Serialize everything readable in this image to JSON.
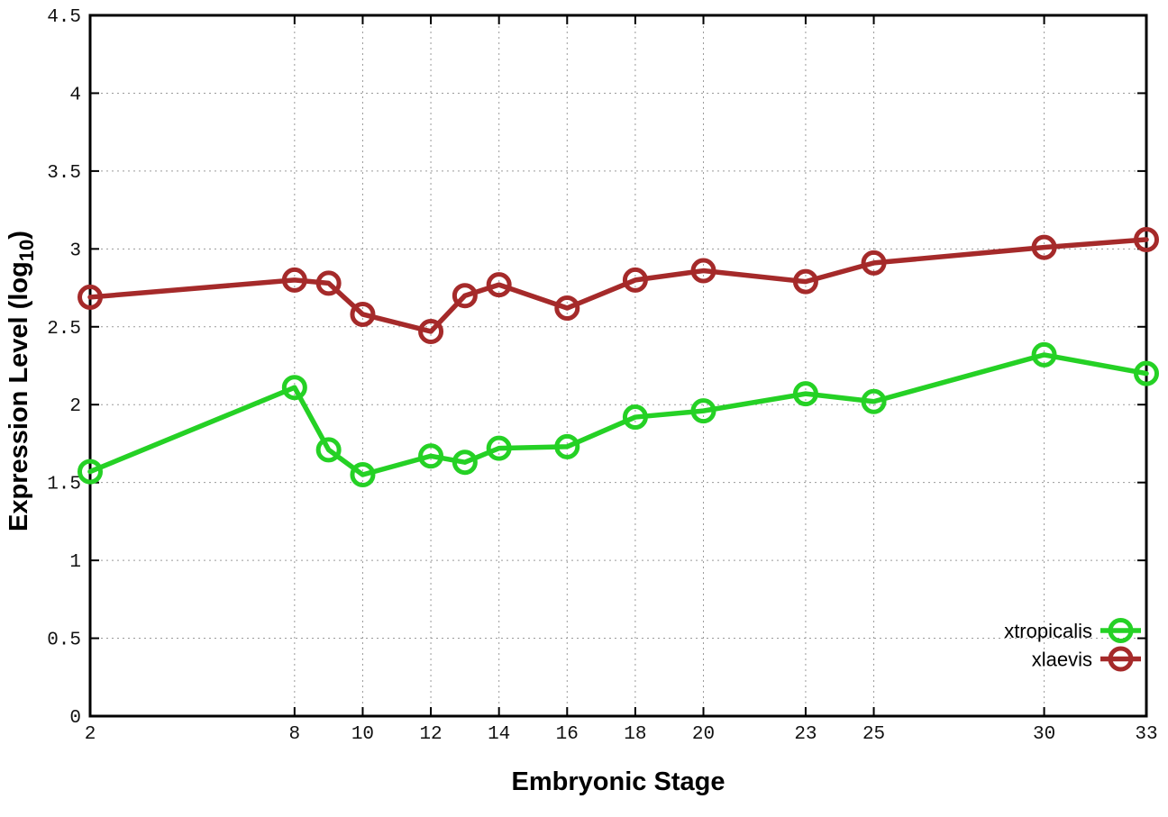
{
  "chart_data": {
    "type": "line",
    "title": "",
    "xlabel": "Embryonic Stage",
    "ylabel": "Expression Level (log10)",
    "ylabel_parts": {
      "pre": "Expression Level (log",
      "sub": "10",
      "post": ")"
    },
    "x": [
      2,
      8,
      9,
      10,
      12,
      13,
      14,
      16,
      18,
      20,
      23,
      25,
      30,
      33
    ],
    "xticks": [
      2,
      8,
      10,
      12,
      14,
      16,
      18,
      20,
      23,
      25,
      30,
      33
    ],
    "yticks": [
      0,
      0.5,
      1,
      1.5,
      2,
      2.5,
      3,
      3.5,
      4,
      4.5
    ],
    "xlim": [
      2,
      33
    ],
    "ylim": [
      0,
      4.5
    ],
    "grid": true,
    "grid_style": "dotted",
    "marker": "open-circle",
    "legend_position": "bottom-right-inside",
    "background_color": "#ffffff",
    "border_color": "#000000",
    "series": [
      {
        "name": "xtropicalis",
        "color": "#25d125",
        "values": [
          1.57,
          2.11,
          1.71,
          1.55,
          1.67,
          1.63,
          1.72,
          1.73,
          1.92,
          1.96,
          2.07,
          2.02,
          2.32,
          2.2
        ]
      },
      {
        "name": "xlaevis",
        "color": "#a52a2a",
        "values": [
          2.69,
          2.8,
          2.78,
          2.58,
          2.47,
          2.7,
          2.77,
          2.62,
          2.8,
          2.86,
          2.79,
          2.91,
          3.01,
          3.06
        ]
      }
    ]
  }
}
